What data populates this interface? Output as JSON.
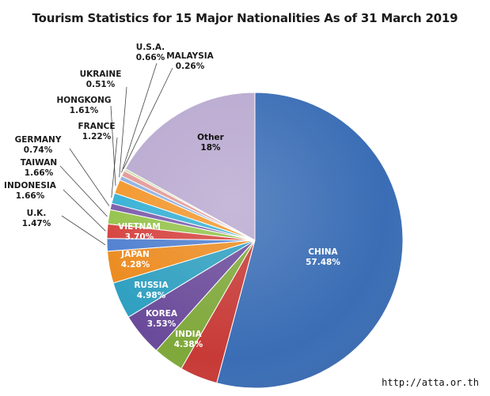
{
  "chart_data": {
    "type": "pie",
    "title": "Tourism Statistics for 15 Major Nationalities As of 31 March 2019",
    "slices": [
      {
        "name": "CHINA",
        "value_label": "57.48%",
        "value": 57.48,
        "color": "#3a6db5"
      },
      {
        "name": "INDIA",
        "value_label": "4.38%",
        "value": 4.38,
        "color": "#c73a36"
      },
      {
        "name": "KOREA",
        "value_label": "3.53%",
        "value": 3.53,
        "color": "#7fa83a"
      },
      {
        "name": "RUSSIA",
        "value_label": "4.98%",
        "value": 4.98,
        "color": "#6a4a9a"
      },
      {
        "name": "JAPAN",
        "value_label": "4.28%",
        "value": 4.28,
        "color": "#2e9fc0"
      },
      {
        "name": "VIETNAM",
        "value_label": "3.70%",
        "value": 3.7,
        "color": "#ec8a1e"
      },
      {
        "name": "U.K.",
        "value_label": "1.47%",
        "value": 1.47,
        "color": "#4f7fcf"
      },
      {
        "name": "INDONESIA",
        "value_label": "1.66%",
        "value": 1.66,
        "color": "#d5413d"
      },
      {
        "name": "TAIWAN",
        "value_label": "1.66%",
        "value": 1.66,
        "color": "#94c24a"
      },
      {
        "name": "GERMANY",
        "value_label": "0.74%",
        "value": 0.74,
        "color": "#7a5aaa"
      },
      {
        "name": "FRANCE",
        "value_label": "1.22%",
        "value": 1.22,
        "color": "#34b0d4"
      },
      {
        "name": "HONGKONG",
        "value_label": "1.61%",
        "value": 1.61,
        "color": "#f2962a"
      },
      {
        "name": "UKRAINE",
        "value_label": "0.51%",
        "value": 0.51,
        "color": "#8fb0e0"
      },
      {
        "name": "U.S.A.",
        "value_label": "0.66%",
        "value": 0.66,
        "color": "#e39a98"
      },
      {
        "name": "MALAYSIA",
        "value_label": "0.26%",
        "value": 0.26,
        "color": "#c9dca3"
      },
      {
        "name": "Other",
        "value_label": "18%",
        "value": 18,
        "color": "#b9a9d0"
      }
    ]
  },
  "source_credit": "http://atta.or.th"
}
